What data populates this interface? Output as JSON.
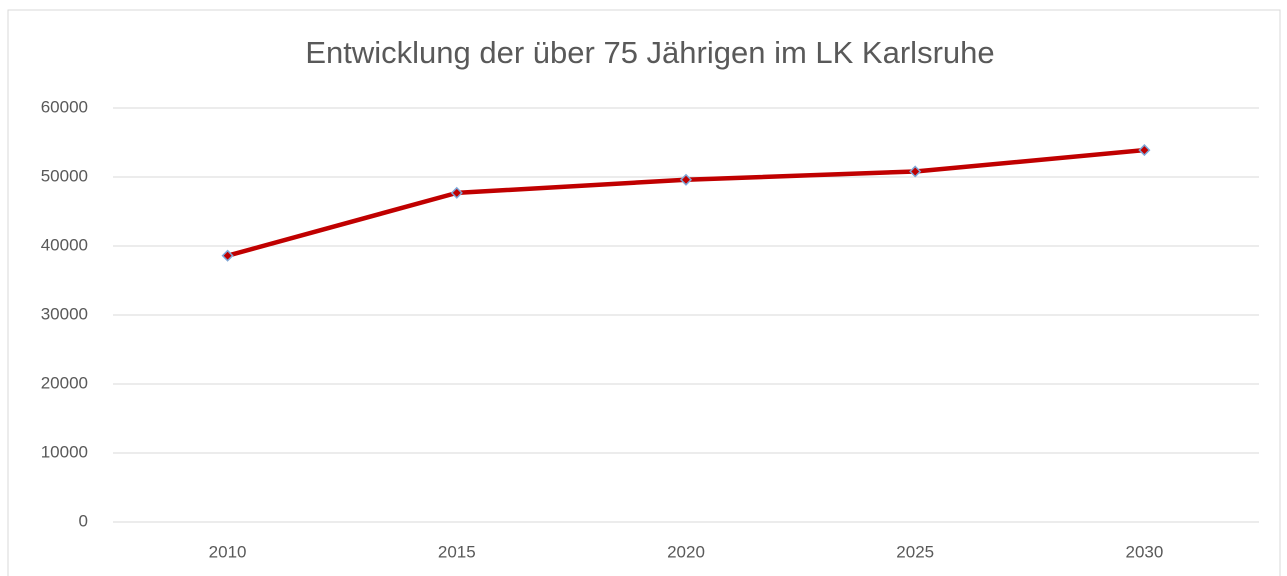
{
  "chart_data": {
    "type": "line",
    "title": "Entwicklung der über 75 Jährigen im LK Karlsruhe",
    "categories": [
      "2010",
      "2015",
      "2020",
      "2025",
      "2030"
    ],
    "series": [
      {
        "color": "#c00000",
        "values": [
          38600,
          47700,
          49600,
          50800,
          53900
        ]
      }
    ],
    "ylim": [
      0,
      60000
    ],
    "yticks": [
      0,
      10000,
      20000,
      30000,
      40000,
      50000,
      60000
    ],
    "grid": true
  }
}
